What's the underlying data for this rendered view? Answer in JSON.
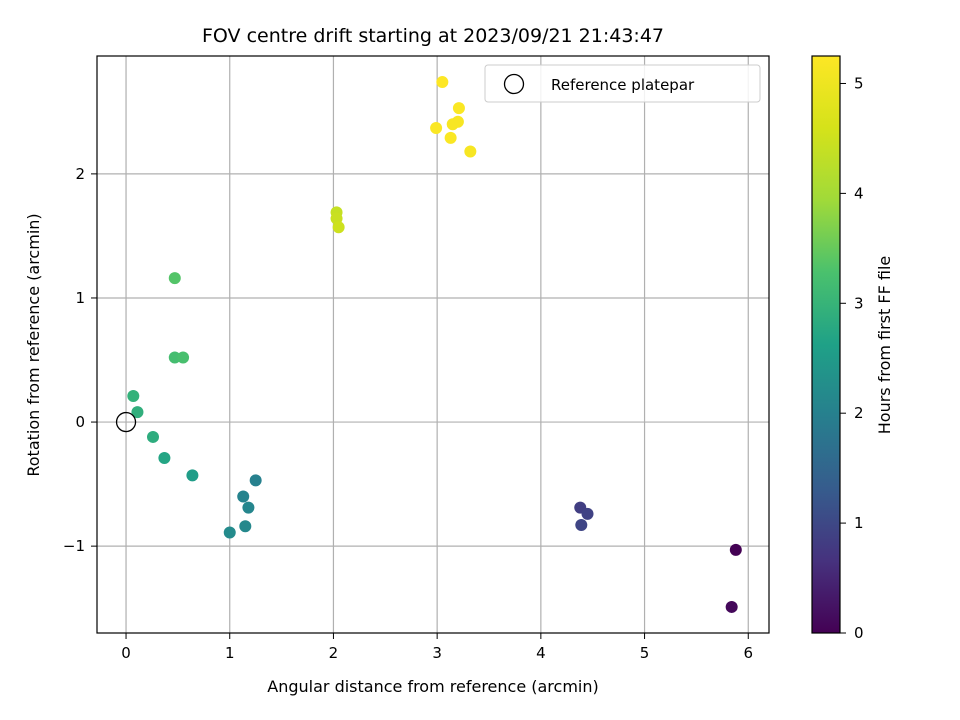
{
  "chart_data": {
    "type": "scatter",
    "title": "FOV centre drift starting at 2023/09/21 21:43:47",
    "xlabel": "Angular distance from reference (arcmin)",
    "ylabel": "Rotation from reference (arcmin)",
    "xlim": [
      -0.28,
      6.2
    ],
    "ylim": [
      -1.7,
      2.95
    ],
    "xticks": [
      0,
      1,
      2,
      3,
      4,
      5,
      6
    ],
    "xtick_labels": [
      "0",
      "1",
      "2",
      "3",
      "4",
      "5",
      "6"
    ],
    "yticks": [
      -1,
      0,
      1,
      2
    ],
    "ytick_labels": [
      "−1",
      "0",
      "1",
      "2"
    ],
    "grid": true,
    "legend": {
      "position": "top-right",
      "label": "Reference platepar"
    },
    "reference_point": {
      "x": 0,
      "y": 0
    },
    "colorbar": {
      "label": "Hours from first FF file",
      "colormap": "viridis",
      "range": [
        0,
        5.25
      ],
      "ticks": [
        0,
        1,
        2,
        3,
        4,
        5
      ],
      "tick_labels": [
        "0",
        "1",
        "2",
        "3",
        "4",
        "5"
      ]
    },
    "points": [
      {
        "x": 5.88,
        "y": -1.03,
        "hours": 0.0
      },
      {
        "x": 5.84,
        "y": -1.49,
        "hours": 0.1
      },
      {
        "x": 4.38,
        "y": -0.69,
        "hours": 0.85
      },
      {
        "x": 4.45,
        "y": -0.74,
        "hours": 0.9
      },
      {
        "x": 4.39,
        "y": -0.83,
        "hours": 0.95
      },
      {
        "x": 1.25,
        "y": -0.47,
        "hours": 2.0
      },
      {
        "x": 1.13,
        "y": -0.6,
        "hours": 2.05
      },
      {
        "x": 1.18,
        "y": -0.69,
        "hours": 2.1
      },
      {
        "x": 1.15,
        "y": -0.84,
        "hours": 2.15
      },
      {
        "x": 1.0,
        "y": -0.89,
        "hours": 2.2
      },
      {
        "x": 0.64,
        "y": -0.43,
        "hours": 2.55
      },
      {
        "x": 0.37,
        "y": -0.29,
        "hours": 2.7
      },
      {
        "x": 0.26,
        "y": -0.12,
        "hours": 2.85
      },
      {
        "x": 0.11,
        "y": 0.08,
        "hours": 2.9
      },
      {
        "x": 0.07,
        "y": 0.21,
        "hours": 2.95
      },
      {
        "x": 0.47,
        "y": 0.52,
        "hours": 3.2
      },
      {
        "x": 0.55,
        "y": 0.52,
        "hours": 3.25
      },
      {
        "x": 0.47,
        "y": 1.16,
        "hours": 3.35
      },
      {
        "x": 2.03,
        "y": 1.69,
        "hours": 4.4
      },
      {
        "x": 2.03,
        "y": 1.64,
        "hours": 4.45
      },
      {
        "x": 2.05,
        "y": 1.57,
        "hours": 4.5
      },
      {
        "x": 3.05,
        "y": 2.74,
        "hours": 5.25
      },
      {
        "x": 3.21,
        "y": 2.53,
        "hours": 5.2
      },
      {
        "x": 3.2,
        "y": 2.42,
        "hours": 5.15
      },
      {
        "x": 3.15,
        "y": 2.4,
        "hours": 5.15
      },
      {
        "x": 2.99,
        "y": 2.37,
        "hours": 5.2
      },
      {
        "x": 3.13,
        "y": 2.29,
        "hours": 5.2
      },
      {
        "x": 3.32,
        "y": 2.18,
        "hours": 5.15
      }
    ]
  }
}
